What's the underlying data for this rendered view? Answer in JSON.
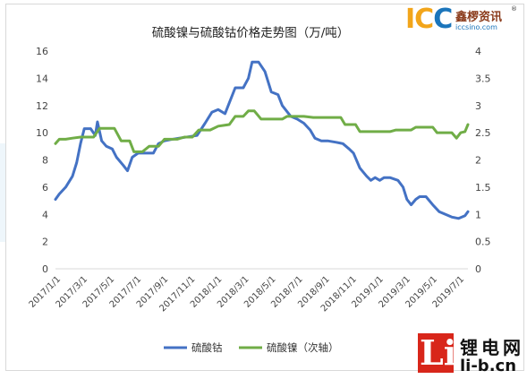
{
  "chart_data": {
    "type": "line",
    "title": "硫酸镍与硫酸钴价格走势图（万/吨）",
    "primary_axis": {
      "range": [
        0,
        16
      ],
      "ticks": [
        "0",
        "2",
        "4",
        "6",
        "8",
        "10",
        "12",
        "14",
        "16"
      ]
    },
    "secondary_axis": {
      "range": [
        0,
        4
      ],
      "ticks": [
        "0",
        "0.5",
        "1",
        "1.5",
        "2",
        "2.5",
        "3",
        "3.5",
        "4"
      ]
    },
    "x_tick_labels": [
      "2017/1/1",
      "2017/3/1",
      "2017/5/1",
      "2017/7/1",
      "2017/9/1",
      "2017/11/1",
      "2018/1/1",
      "2018/3/1",
      "2018/5/1",
      "2018/7/1",
      "2018/9/1",
      "2018/11/1",
      "2019/1/1",
      "2019/3/1",
      "2019/5/1",
      "2019/7/1"
    ],
    "x_start": "2017-01-01",
    "x_end": "2019-09-01",
    "legend_position": "bottom",
    "series": [
      {
        "name": "硫酸钴",
        "axis": "primary",
        "color": "#4472c4",
        "points": [
          [
            "2017-01-01",
            5.1
          ],
          [
            "2017-01-10",
            5.5
          ],
          [
            "2017-01-25",
            6.0
          ],
          [
            "2017-02-10",
            6.8
          ],
          [
            "2017-02-20",
            7.8
          ],
          [
            "2017-03-01",
            9.2
          ],
          [
            "2017-03-10",
            10.3
          ],
          [
            "2017-03-25",
            10.3
          ],
          [
            "2017-04-05",
            9.8
          ],
          [
            "2017-04-10",
            10.8
          ],
          [
            "2017-04-20",
            9.4
          ],
          [
            "2017-05-01",
            9.0
          ],
          [
            "2017-05-15",
            8.8
          ],
          [
            "2017-05-25",
            8.2
          ],
          [
            "2017-06-10",
            7.6
          ],
          [
            "2017-06-20",
            7.2
          ],
          [
            "2017-07-01",
            8.2
          ],
          [
            "2017-07-15",
            8.5
          ],
          [
            "2017-08-01",
            8.5
          ],
          [
            "2017-08-20",
            8.5
          ],
          [
            "2017-09-01",
            9.2
          ],
          [
            "2017-09-15",
            9.4
          ],
          [
            "2017-10-01",
            9.5
          ],
          [
            "2017-10-20",
            9.6
          ],
          [
            "2017-11-10",
            9.7
          ],
          [
            "2017-12-01",
            9.8
          ],
          [
            "2017-12-20",
            10.7
          ],
          [
            "2018-01-05",
            11.5
          ],
          [
            "2018-01-20",
            11.7
          ],
          [
            "2018-02-05",
            11.4
          ],
          [
            "2018-02-15",
            12.2
          ],
          [
            "2018-03-01",
            13.3
          ],
          [
            "2018-03-20",
            13.3
          ],
          [
            "2018-04-01",
            14.0
          ],
          [
            "2018-04-10",
            15.2
          ],
          [
            "2018-04-25",
            15.2
          ],
          [
            "2018-05-10",
            14.5
          ],
          [
            "2018-05-25",
            13.0
          ],
          [
            "2018-06-10",
            12.8
          ],
          [
            "2018-06-20",
            12.0
          ],
          [
            "2018-07-10",
            11.2
          ],
          [
            "2018-07-25",
            11.0
          ],
          [
            "2018-08-10",
            10.7
          ],
          [
            "2018-08-25",
            10.2
          ],
          [
            "2018-09-05",
            9.6
          ],
          [
            "2018-09-20",
            9.4
          ],
          [
            "2018-10-05",
            9.4
          ],
          [
            "2018-10-25",
            9.3
          ],
          [
            "2018-11-10",
            9.2
          ],
          [
            "2018-11-25",
            8.8
          ],
          [
            "2018-12-05",
            8.5
          ],
          [
            "2018-12-20",
            7.4
          ],
          [
            "2019-01-05",
            6.8
          ],
          [
            "2019-01-15",
            6.5
          ],
          [
            "2019-01-25",
            6.7
          ],
          [
            "2019-02-05",
            6.5
          ],
          [
            "2019-02-15",
            6.7
          ],
          [
            "2019-03-01",
            6.7
          ],
          [
            "2019-03-20",
            6.5
          ],
          [
            "2019-04-01",
            6.0
          ],
          [
            "2019-04-10",
            5.1
          ],
          [
            "2019-04-20",
            4.7
          ],
          [
            "2019-05-01",
            5.1
          ],
          [
            "2019-05-10",
            5.3
          ],
          [
            "2019-05-25",
            5.3
          ],
          [
            "2019-06-10",
            4.7
          ],
          [
            "2019-06-25",
            4.2
          ],
          [
            "2019-07-10",
            4.0
          ],
          [
            "2019-07-25",
            3.8
          ],
          [
            "2019-08-10",
            3.7
          ],
          [
            "2019-08-25",
            3.9
          ],
          [
            "2019-09-01",
            4.2
          ]
        ]
      },
      {
        "name": "硫酸镍（次轴）",
        "axis": "secondary",
        "color": "#70ad47",
        "points": [
          [
            "2017-01-01",
            2.3
          ],
          [
            "2017-01-10",
            2.38
          ],
          [
            "2017-01-25",
            2.38
          ],
          [
            "2017-02-10",
            2.4
          ],
          [
            "2017-03-01",
            2.42
          ],
          [
            "2017-04-01",
            2.42
          ],
          [
            "2017-04-15",
            2.58
          ],
          [
            "2017-05-20",
            2.58
          ],
          [
            "2017-06-05",
            2.35
          ],
          [
            "2017-06-25",
            2.35
          ],
          [
            "2017-07-05",
            2.15
          ],
          [
            "2017-07-25",
            2.15
          ],
          [
            "2017-08-10",
            2.25
          ],
          [
            "2017-09-01",
            2.25
          ],
          [
            "2017-09-15",
            2.38
          ],
          [
            "2017-10-15",
            2.38
          ],
          [
            "2017-11-01",
            2.42
          ],
          [
            "2017-11-20",
            2.42
          ],
          [
            "2017-12-05",
            2.55
          ],
          [
            "2018-01-01",
            2.55
          ],
          [
            "2018-01-20",
            2.62
          ],
          [
            "2018-02-15",
            2.65
          ],
          [
            "2018-03-01",
            2.8
          ],
          [
            "2018-03-20",
            2.8
          ],
          [
            "2018-04-01",
            2.9
          ],
          [
            "2018-04-15",
            2.9
          ],
          [
            "2018-05-01",
            2.75
          ],
          [
            "2018-06-20",
            2.75
          ],
          [
            "2018-07-01",
            2.8
          ],
          [
            "2018-08-10",
            2.8
          ],
          [
            "2018-09-01",
            2.78
          ],
          [
            "2018-11-05",
            2.78
          ],
          [
            "2018-11-15",
            2.65
          ],
          [
            "2018-12-10",
            2.65
          ],
          [
            "2018-12-20",
            2.52
          ],
          [
            "2019-03-01",
            2.52
          ],
          [
            "2019-03-15",
            2.55
          ],
          [
            "2019-04-20",
            2.55
          ],
          [
            "2019-05-01",
            2.6
          ],
          [
            "2019-06-10",
            2.6
          ],
          [
            "2019-06-20",
            2.5
          ],
          [
            "2019-07-25",
            2.5
          ],
          [
            "2019-08-05",
            2.4
          ],
          [
            "2019-08-15",
            2.5
          ],
          [
            "2019-08-25",
            2.52
          ],
          [
            "2019-09-01",
            2.65
          ]
        ]
      }
    ]
  },
  "branding": {
    "icc_letters_a": "IC",
    "icc_letters_b": "C",
    "icc_cn": "鑫椤资讯",
    "icc_url": "iccsino.com",
    "icc_reg": "®",
    "li_mark": "Li",
    "li_cn": "锂电网",
    "li_url": "li-b.cn",
    "colors": {
      "icc_orange": "#f2a51a",
      "icc_blue": "#1b75bb",
      "li_red": "#d8261a"
    }
  }
}
